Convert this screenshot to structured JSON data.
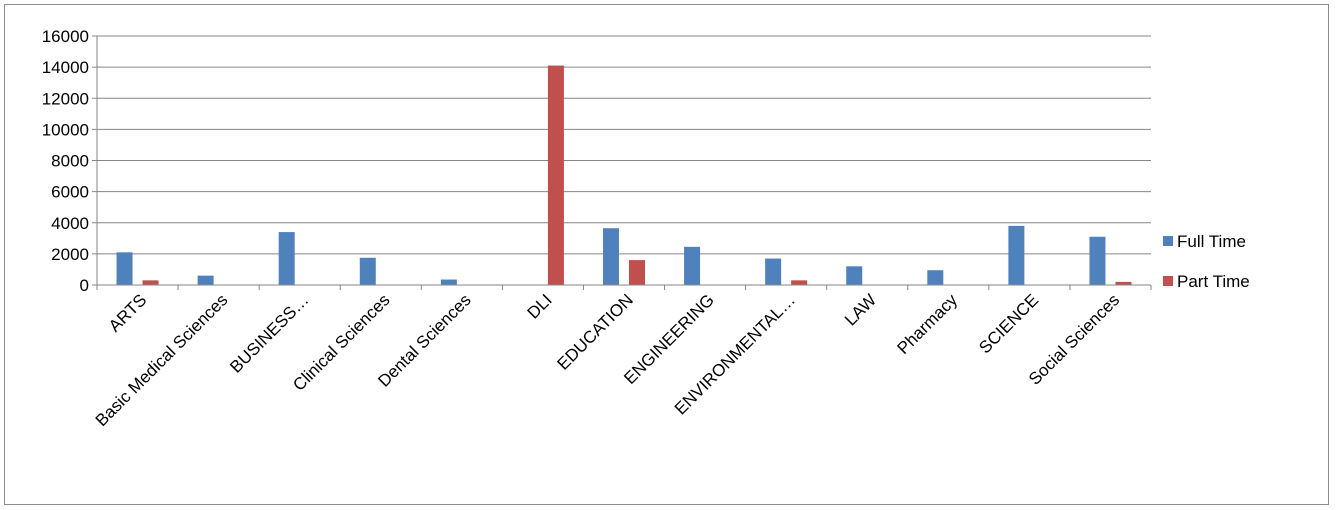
{
  "chart_data": {
    "type": "bar",
    "categories": [
      "ARTS",
      "Basic Medical Sciences",
      "BUSINESS…",
      "Clinical Sciences",
      "Dental Sciences",
      "DLI",
      "EDUCATION",
      "ENGINEERING",
      "ENVIRONMENTAL…",
      "LAW",
      "Pharmacy",
      "SCIENCE",
      "Social Sciences"
    ],
    "series": [
      {
        "name": "Full Time",
        "color": "#4f81bd",
        "values": [
          2100,
          600,
          3400,
          1750,
          350,
          0,
          3650,
          2450,
          1700,
          1200,
          950,
          3800,
          3100
        ]
      },
      {
        "name": "Part Time",
        "color": "#c0504d",
        "values": [
          300,
          0,
          0,
          0,
          0,
          14100,
          1600,
          0,
          300,
          0,
          0,
          0,
          200
        ]
      }
    ],
    "title": "",
    "xlabel": "",
    "ylabel": "",
    "ylim": [
      0,
      16000
    ],
    "yticks": [
      0,
      2000,
      4000,
      6000,
      8000,
      10000,
      12000,
      14000,
      16000
    ],
    "grid": true,
    "legend_position": "right"
  }
}
